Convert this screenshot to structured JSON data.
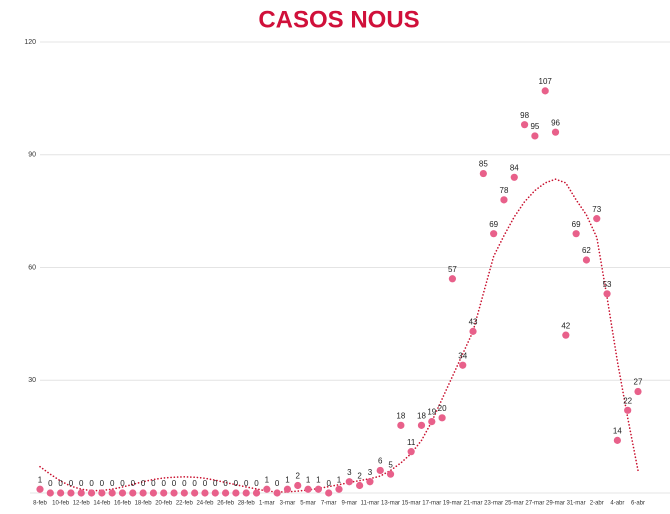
{
  "chart_data": {
    "type": "dot",
    "title": "CASOS NOUS",
    "categories": [
      "8-feb",
      null,
      "10-feb",
      null,
      "12-feb",
      null,
      "14-feb",
      null,
      "16-feb",
      null,
      "18-feb",
      null,
      "20-feb",
      null,
      "22-feb",
      null,
      "24-feb",
      null,
      "26-feb",
      null,
      "28-feb",
      null,
      "1-mar",
      null,
      "3-mar",
      null,
      "5-mar",
      null,
      "7-mar",
      null,
      "9-mar",
      null,
      "11-mar",
      null,
      "13-mar",
      null,
      "15-mar",
      null,
      "17-mar",
      null,
      "19-mar",
      null,
      "21-mar",
      null,
      "23-mar",
      null,
      "25-mar",
      null,
      "27-mar",
      null,
      "29-mar",
      null,
      "31-mar",
      null,
      "2-abr",
      null,
      "4-abr",
      null,
      "6-abr"
    ],
    "values": [
      1,
      0,
      0,
      0,
      0,
      0,
      0,
      0,
      0,
      0,
      0,
      0,
      0,
      0,
      0,
      0,
      0,
      0,
      0,
      0,
      0,
      0,
      1,
      0,
      1,
      2,
      1,
      1,
      0,
      1,
      3,
      2,
      3,
      6,
      5,
      18,
      11,
      18,
      19,
      20,
      57,
      34,
      43,
      85,
      69,
      78,
      84,
      98,
      95,
      107,
      96,
      42,
      69,
      62,
      73,
      53,
      14,
      22,
      27
    ],
    "color": "#e8608a",
    "trendline": {
      "color": "#c8102e",
      "values": [
        7,
        5,
        3.2,
        1.8,
        1,
        0.6,
        0.7,
        1,
        1.6,
        2.3,
        3,
        3.6,
        4,
        4.2,
        4.3,
        4.2,
        3.9,
        3.4,
        2.8,
        2.2,
        1.6,
        1.1,
        0.5,
        0.3,
        0.3,
        0.5,
        0.8,
        1.2,
        1.7,
        2.2,
        2.8,
        3.3,
        3.8,
        4.5,
        6,
        8,
        10.5,
        14,
        19,
        25,
        31,
        37,
        43,
        53,
        63,
        68.5,
        73.5,
        77.5,
        80.5,
        82.5,
        83.5,
        82.5,
        78,
        74,
        68,
        52,
        35,
        20,
        6
      ]
    },
    "ylim": [
      0,
      120
    ],
    "yticks": [
      30,
      60,
      90,
      120
    ],
    "grid": true
  }
}
